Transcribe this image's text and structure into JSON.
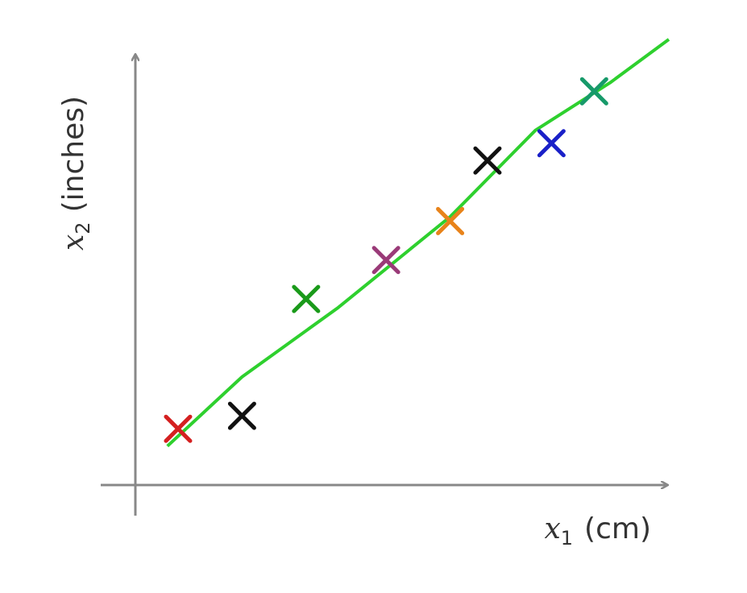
{
  "chart_data": {
    "type": "scatter",
    "x_label": {
      "var": "x",
      "sub": "1",
      "unit": "(cm)"
    },
    "y_label": {
      "var": "x",
      "sub": "2",
      "unit": "(inches)"
    },
    "xlim": [
      0,
      10
    ],
    "ylim": [
      0,
      10
    ],
    "points": {
      "x": [
        0.8,
        2.0,
        3.2,
        4.7,
        5.9,
        6.6,
        7.8,
        8.6
      ],
      "y": [
        1.3,
        1.6,
        4.3,
        5.2,
        6.1,
        7.5,
        7.9,
        9.1
      ],
      "colors": [
        "#d42020",
        "#111111",
        "#1a9a1a",
        "#9a3a78",
        "#e8831a",
        "#111111",
        "#1a20c8",
        "#179a6a"
      ]
    },
    "fit_line": {
      "color": "#2ed02e",
      "x": [
        0.6,
        2.0,
        3.8,
        5.9,
        7.5,
        8.9,
        10.0
      ],
      "y": [
        0.9,
        2.5,
        4.1,
        6.2,
        8.2,
        9.3,
        10.3
      ]
    }
  }
}
